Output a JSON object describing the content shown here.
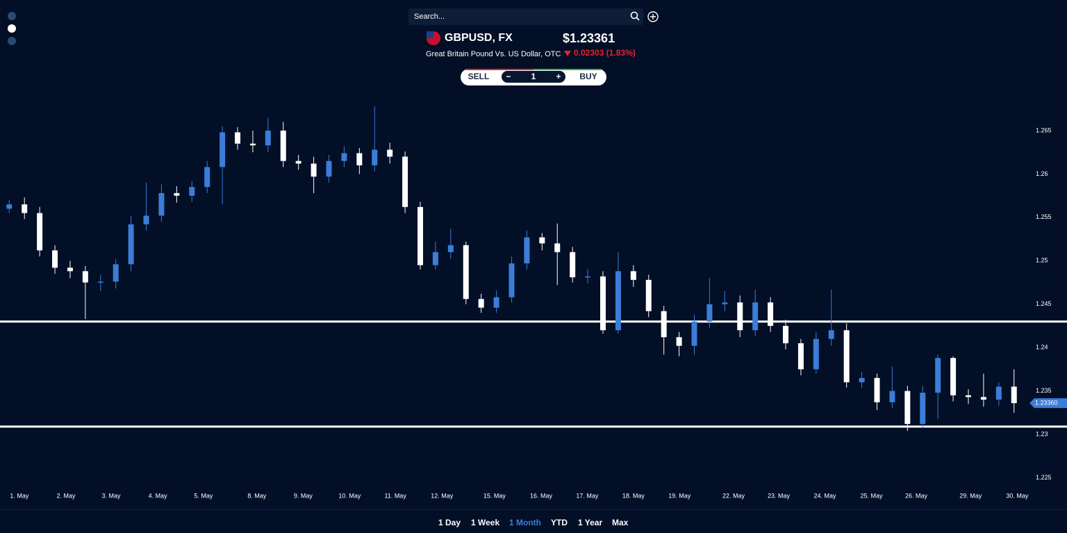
{
  "header": {
    "search_placeholder": "Search...",
    "symbol": "GBPUSD, FX",
    "price": "$1.23361",
    "description": "Great Britain Pound Vs. US Dollar, OTC",
    "change": "0.02303 (1.83%)"
  },
  "trade": {
    "sell": "SELL",
    "minus": "−",
    "quantity": 1,
    "plus": "+",
    "buy": "BUY"
  },
  "chart_data": {
    "type": "candlestick",
    "x": [
      0.2,
      0.53,
      0.86,
      1.19,
      1.52,
      1.85,
      2.18,
      2.51,
      2.84,
      3.17,
      3.5,
      3.83,
      4.16,
      4.49,
      4.82,
      5.15,
      5.48,
      5.81,
      6.14,
      6.47,
      6.8,
      7.13,
      7.46,
      7.79,
      8.12,
      8.45,
      8.78,
      9.11,
      9.44,
      9.77,
      10.1,
      10.43,
      10.76,
      11.09,
      11.42,
      11.75,
      12.08,
      12.41,
      12.74,
      13.07,
      13.4,
      13.73,
      14.06,
      14.39,
      14.72,
      15.05,
      15.38,
      15.71,
      16.04,
      16.37,
      16.7,
      17.03,
      17.36,
      17.69,
      18.02,
      18.35,
      18.68,
      19.01,
      19.34,
      19.67,
      20,
      20.33,
      20.66,
      20.99,
      21.32,
      21.65,
      21.98
    ],
    "open": [
      1.256,
      1.2565,
      1.2555,
      1.2512,
      1.2492,
      1.2488,
      1.2475,
      1.2476,
      1.2496,
      1.2542,
      1.2552,
      1.2578,
      1.2575,
      1.2585,
      1.2608,
      1.2648,
      1.2635,
      1.2633,
      1.265,
      1.2615,
      1.2612,
      1.2597,
      1.2615,
      1.2624,
      1.261,
      1.2628,
      1.262,
      1.2562,
      1.2495,
      1.251,
      1.2518,
      1.2456,
      1.2446,
      1.2458,
      1.2497,
      1.2527,
      1.252,
      1.251,
      1.2481,
      1.2482,
      1.242,
      1.2488,
      1.2478,
      1.2442,
      1.2412,
      1.2402,
      1.243,
      1.245,
      1.2452,
      1.242,
      1.2452,
      1.2425,
      1.2405,
      1.2375,
      1.241,
      1.242,
      1.236,
      1.2365,
      1.2337,
      1.235,
      1.2312,
      1.2348,
      1.2388,
      1.2345,
      1.2343,
      1.234,
      1.2355
    ],
    "high": [
      1.257,
      1.2573,
      1.2562,
      1.2518,
      1.25,
      1.2494,
      1.2484,
      1.2502,
      1.2552,
      1.259,
      1.2588,
      1.2586,
      1.2592,
      1.2615,
      1.2655,
      1.2654,
      1.265,
      1.2665,
      1.266,
      1.2622,
      1.262,
      1.2622,
      1.2632,
      1.263,
      1.2678,
      1.2636,
      1.2626,
      1.2568,
      1.2522,
      1.2537,
      1.2522,
      1.2462,
      1.2466,
      1.2505,
      1.2535,
      1.2532,
      1.2543,
      1.2516,
      1.249,
      1.2488,
      1.251,
      1.2495,
      1.2484,
      1.2448,
      1.2418,
      1.2438,
      1.248,
      1.2465,
      1.246,
      1.2467,
      1.2458,
      1.2432,
      1.241,
      1.2418,
      1.2467,
      1.2428,
      1.2372,
      1.237,
      1.2378,
      1.2356,
      1.2356,
      1.2392,
      1.239,
      1.2352,
      1.237,
      1.236,
      1.2375
    ],
    "low": [
      1.2555,
      1.2548,
      1.2505,
      1.2485,
      1.248,
      1.2433,
      1.2465,
      1.2468,
      1.2488,
      1.2535,
      1.2545,
      1.2567,
      1.2568,
      1.2578,
      1.2565,
      1.2628,
      1.2625,
      1.2625,
      1.2608,
      1.2605,
      1.2578,
      1.259,
      1.2608,
      1.26,
      1.2603,
      1.2612,
      1.2555,
      1.249,
      1.249,
      1.2502,
      1.245,
      1.244,
      1.244,
      1.2452,
      1.249,
      1.2512,
      1.2472,
      1.2475,
      1.2474,
      1.2416,
      1.2416,
      1.247,
      1.2435,
      1.2392,
      1.239,
      1.2392,
      1.2423,
      1.2442,
      1.2412,
      1.2413,
      1.2418,
      1.2398,
      1.2368,
      1.237,
      1.2402,
      1.2354,
      1.2354,
      1.2328,
      1.233,
      1.2304,
      1.2308,
      1.2318,
      1.2338,
      1.2335,
      1.2332,
      1.2333,
      1.2325
    ],
    "close": [
      1.2565,
      1.2555,
      1.2512,
      1.2492,
      1.2488,
      1.2475,
      1.2476,
      1.2496,
      1.2542,
      1.2552,
      1.2578,
      1.2575,
      1.2585,
      1.2608,
      1.2648,
      1.2635,
      1.2633,
      1.265,
      1.2615,
      1.2612,
      1.2597,
      1.2615,
      1.2624,
      1.261,
      1.2628,
      1.262,
      1.2562,
      1.2495,
      1.251,
      1.2518,
      1.2456,
      1.2446,
      1.2458,
      1.2497,
      1.2527,
      1.252,
      1.251,
      1.2481,
      1.2482,
      1.242,
      1.2488,
      1.2478,
      1.2442,
      1.2412,
      1.2402,
      1.243,
      1.245,
      1.2452,
      1.242,
      1.2452,
      1.2425,
      1.2405,
      1.2375,
      1.241,
      1.242,
      1.236,
      1.2365,
      1.2337,
      1.235,
      1.2312,
      1.2348,
      1.2388,
      1.2345,
      1.2343,
      1.234,
      1.2355,
      1.2336
    ],
    "up_color": "#3b7dd8",
    "down_color": "#ffffff",
    "xlim": [
      0,
      22.3
    ],
    "xticks": [
      {
        "value": 0.42,
        "label": "1. May"
      },
      {
        "value": 1.43,
        "label": "2. May"
      },
      {
        "value": 2.41,
        "label": "3. May"
      },
      {
        "value": 3.42,
        "label": "4. May"
      },
      {
        "value": 4.41,
        "label": "5. May"
      },
      {
        "value": 5.57,
        "label": "8. May"
      },
      {
        "value": 6.57,
        "label": "9. May"
      },
      {
        "value": 7.58,
        "label": "10. May"
      },
      {
        "value": 8.57,
        "label": "11. May"
      },
      {
        "value": 9.58,
        "label": "12. May"
      },
      {
        "value": 10.72,
        "label": "15. May"
      },
      {
        "value": 11.73,
        "label": "16. May"
      },
      {
        "value": 12.73,
        "label": "17. May"
      },
      {
        "value": 13.73,
        "label": "18. May"
      },
      {
        "value": 14.73,
        "label": "19. May"
      },
      {
        "value": 15.9,
        "label": "22. May"
      },
      {
        "value": 16.88,
        "label": "23. May"
      },
      {
        "value": 17.88,
        "label": "24. May"
      },
      {
        "value": 18.89,
        "label": "25. May"
      },
      {
        "value": 19.86,
        "label": "26. May"
      },
      {
        "value": 21.04,
        "label": "29. May"
      },
      {
        "value": 22.05,
        "label": "30. May"
      }
    ],
    "ylim": [
      1.224,
      1.269
    ],
    "yticks": [
      1.225,
      1.23,
      1.235,
      1.24,
      1.245,
      1.25,
      1.255,
      1.26,
      1.265
    ],
    "hlines": [
      1.243,
      1.2309
    ],
    "last_price": {
      "value": 1.2336,
      "label": "1.23360"
    }
  },
  "timeframes": {
    "options": [
      "1 Day",
      "1 Week",
      "1 Month",
      "YTD",
      "1 Year",
      "Max"
    ],
    "active": 2
  }
}
